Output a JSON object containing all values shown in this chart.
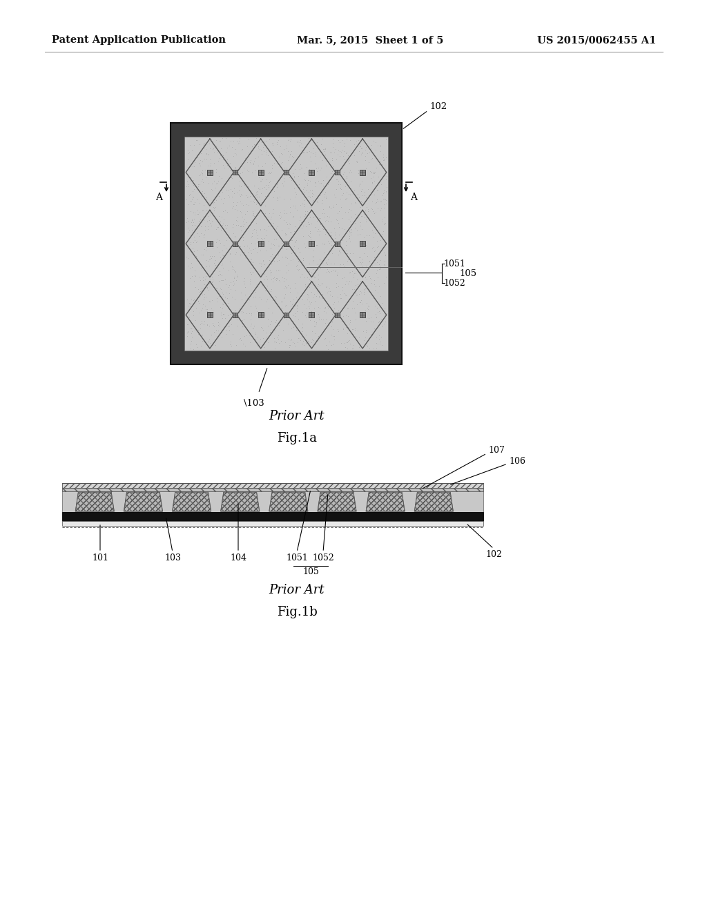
{
  "header_left": "Patent Application Publication",
  "header_mid": "Mar. 5, 2015  Sheet 1 of 5",
  "header_right": "US 2015/0062455 A1",
  "fig1a_caption1": "Prior Art",
  "fig1a_caption2": "Fig.1a",
  "fig1b_caption1": "Prior Art",
  "fig1b_caption2": "Fig.1b",
  "bg_color": "#ffffff"
}
